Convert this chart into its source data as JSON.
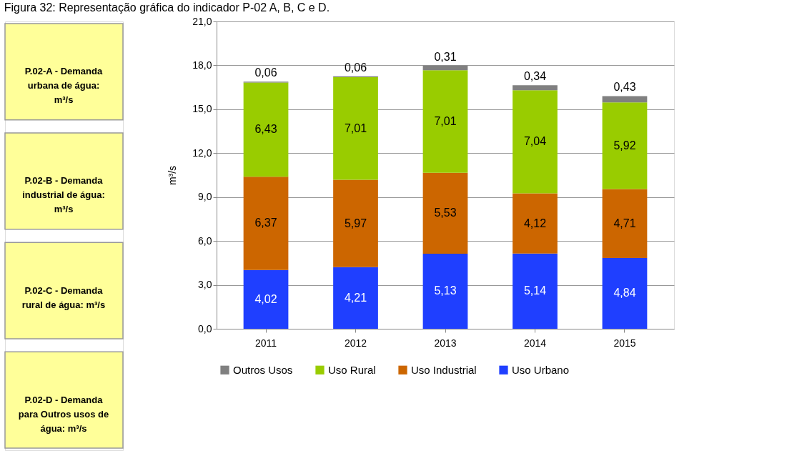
{
  "chart_data": {
    "type": "bar",
    "title": "Figura 32: Representação gráfica do indicador P-02 A, B, C e D.",
    "ylabel": "m³/s",
    "categories": [
      "2011",
      "2012",
      "2013",
      "2014",
      "2015"
    ],
    "stacked": true,
    "series": [
      {
        "name": "Uso Urbano",
        "color": "#1f3fff",
        "values": [
          4.02,
          4.21,
          5.13,
          5.14,
          4.84
        ],
        "value_labels": [
          "4,02",
          "4,21",
          "5,13",
          "5,14",
          "4,84"
        ]
      },
      {
        "name": "Uso Industrial",
        "color": "#cc6600",
        "values": [
          6.37,
          5.97,
          5.53,
          4.12,
          4.71
        ],
        "value_labels": [
          "6,37",
          "5,97",
          "5,53",
          "4,12",
          "4,71"
        ]
      },
      {
        "name": "Uso Rural",
        "color": "#99cc00",
        "values": [
          6.43,
          7.01,
          7.01,
          7.04,
          5.92
        ],
        "value_labels": [
          "6,43",
          "7,01",
          "7,01",
          "7,04",
          "5,92"
        ]
      },
      {
        "name": "Outros Usos",
        "color": "#808080",
        "values": [
          0.06,
          0.06,
          0.31,
          0.34,
          0.43
        ],
        "value_labels": [
          "0,06",
          "0,06",
          "0,31",
          "0,34",
          "0,43"
        ]
      }
    ],
    "ylim": [
      0,
      21
    ],
    "yticks": [
      {
        "value": 0,
        "label": "0,0"
      },
      {
        "value": 3,
        "label": "3,0"
      },
      {
        "value": 6,
        "label": "6,0"
      },
      {
        "value": 9,
        "label": "9,0"
      },
      {
        "value": 12,
        "label": "12,0"
      },
      {
        "value": 15,
        "label": "15,0"
      },
      {
        "value": 18,
        "label": "18,0"
      },
      {
        "value": 21,
        "label": "21,0"
      }
    ],
    "grid": "y",
    "legend": "bottom",
    "annotations": [
      "P.02-A - Demanda urbana de água: m³/s",
      "P.02-B - Demanda industrial de água: m³/s",
      "P.02-C - Demanda rural de água: m³/s",
      "P.02-D - Demanda para Outros usos de água: m³/s"
    ]
  }
}
